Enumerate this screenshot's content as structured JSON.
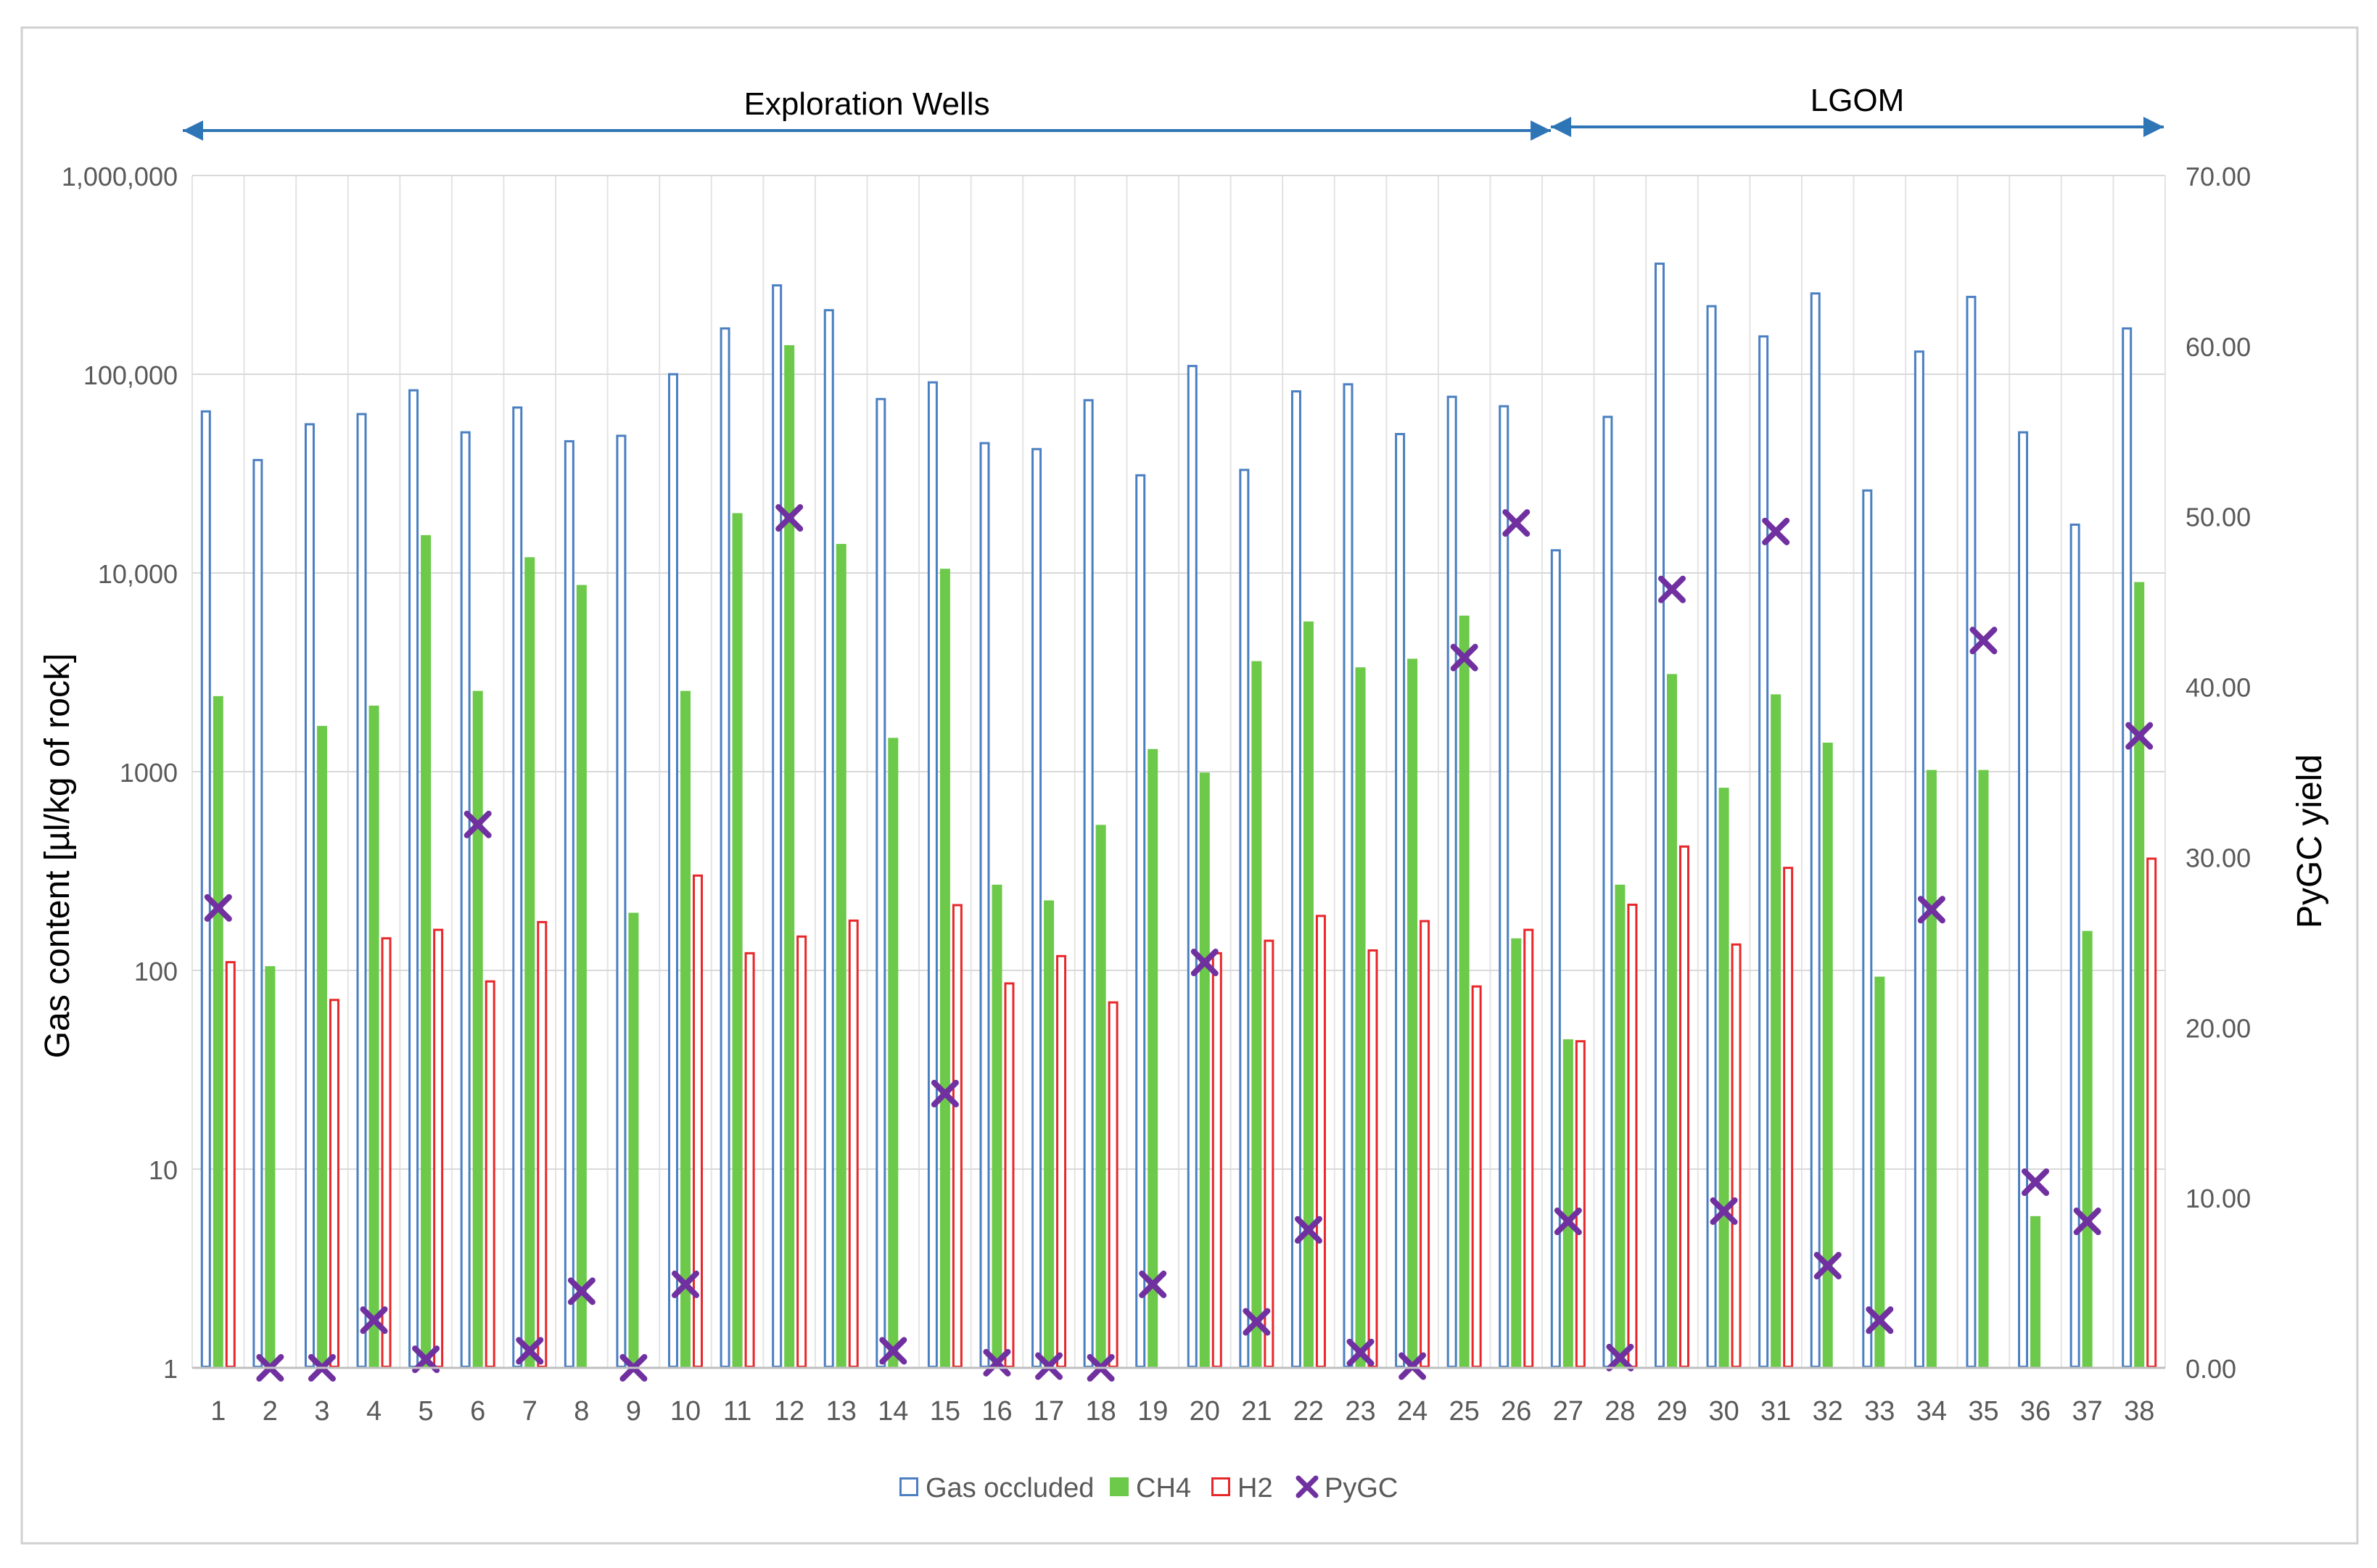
{
  "chart_data": {
    "type": "bar",
    "title": "",
    "ylabel": "Gas content [µl/kg of rock]",
    "y2label": "PyGC yield",
    "yscale": "log",
    "ylim": [
      1,
      1000000
    ],
    "y_ticks": [
      "1",
      "10",
      "100",
      "1000",
      "10,000",
      "100,000",
      "1,000,000"
    ],
    "y2lim": [
      0,
      70
    ],
    "y2_ticks": [
      "0.00",
      "10.00",
      "20.00",
      "30.00",
      "40.00",
      "50.00",
      "60.00",
      "70.00"
    ],
    "grid": true,
    "legend_position": "bottom",
    "categories": [
      "1",
      "2",
      "3",
      "4",
      "5",
      "6",
      "7",
      "8",
      "9",
      "10",
      "11",
      "12",
      "13",
      "14",
      "15",
      "16",
      "17",
      "18",
      "19",
      "20",
      "21",
      "22",
      "23",
      "24",
      "25",
      "26",
      "27",
      "28",
      "29",
      "30",
      "31",
      "32",
      "33",
      "34",
      "35",
      "36",
      "37",
      "38"
    ],
    "series": [
      {
        "name": "Gas occluded",
        "kind": "bar",
        "axis": "left",
        "color": "#4a7fc1",
        "values": [
          65000,
          37000,
          56000,
          63000,
          83000,
          51000,
          68000,
          46000,
          49000,
          100000,
          170000,
          280000,
          210000,
          75000,
          91000,
          45000,
          42000,
          74000,
          31000,
          110000,
          33000,
          82000,
          89000,
          50000,
          77000,
          69000,
          13000,
          61000,
          360000,
          220000,
          155000,
          255000,
          26000,
          130000,
          245000,
          51000,
          17500,
          170000
        ]
      },
      {
        "name": "CH4",
        "kind": "bar",
        "axis": "left",
        "color": "#6cc94a",
        "values": [
          2400,
          105,
          1700,
          2150,
          15500,
          2550,
          12000,
          8700,
          195,
          2550,
          20000,
          140000,
          14000,
          1480,
          10500,
          270,
          225,
          540,
          1300,
          990,
          3600,
          5700,
          3350,
          3700,
          6100,
          145,
          45,
          270,
          3100,
          830,
          2450,
          1400,
          93,
          1020,
          1020,
          5.8,
          158,
          9000
        ]
      },
      {
        "name": "H2",
        "kind": "bar",
        "axis": "left",
        "color": "#e8272a",
        "values": [
          110,
          null,
          71,
          145,
          160,
          88,
          175,
          null,
          null,
          300,
          122,
          148,
          178,
          null,
          213,
          86,
          118,
          69,
          null,
          122,
          141,
          188,
          126,
          177,
          83,
          160,
          44,
          214,
          420,
          135,
          328,
          null,
          null,
          null,
          null,
          null,
          null,
          365
        ]
      },
      {
        "name": "PyGC",
        "kind": "scatter",
        "axis": "right",
        "marker": "x",
        "color": "#7030a0",
        "values": [
          27.0,
          0.0,
          0.0,
          2.8,
          0.5,
          31.9,
          1.0,
          4.5,
          0.0,
          4.9,
          null,
          49.9,
          null,
          1.0,
          16.1,
          0.3,
          0.1,
          0.0,
          4.9,
          23.8,
          2.7,
          8.1,
          0.9,
          0.1,
          41.7,
          49.6,
          8.6,
          0.6,
          45.7,
          9.2,
          49.1,
          6.0,
          2.8,
          26.9,
          42.7,
          10.9,
          8.6,
          37.1
        ]
      }
    ],
    "annotations": [
      {
        "label": "Exploration Wells",
        "from": 1,
        "to": 26
      },
      {
        "label": "LGOM",
        "from": 27,
        "to": 38
      }
    ]
  }
}
